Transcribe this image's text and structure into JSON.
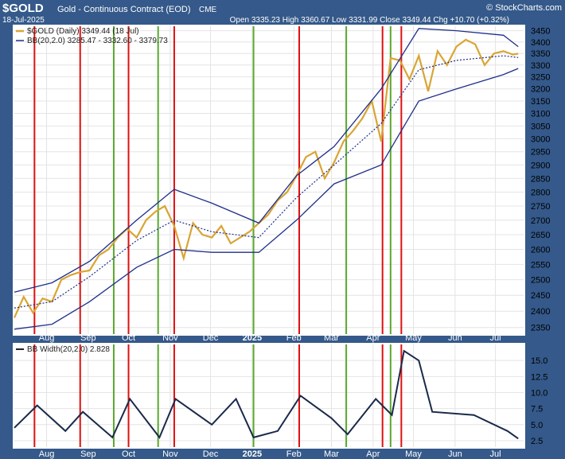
{
  "header": {
    "symbol": "$GOLD",
    "description": "Gold - Continuous Contract (EOD)",
    "exchange": "CME",
    "date": "18-Jul-2025",
    "ohlc_text": "Open 3335.23  High 3360.67  Low 3331.99  Close 3349.44  Chg +10.70 (+0.32%)",
    "watermark": "© StockCharts.com"
  },
  "colors": {
    "frame": "#34598a",
    "panel": "#ffffff",
    "price": "#d9a534",
    "bands": "#1f2f8a",
    "red_line": "#e01010",
    "green_line": "#5aa82e"
  },
  "chart_data": [
    {
      "type": "line",
      "panel": "price",
      "legend": [
        {
          "label": "$GOLD (Daily) 3349.44 (18 Jul)",
          "color": "#d9a534"
        },
        {
          "label": "BB(20,2.0) 3285.47 - 3332.60 - 3379.73",
          "color": "#1f2f8a"
        }
      ],
      "yscale": "log",
      "ylim": [
        2330,
        3470
      ],
      "yticks": [
        2350,
        2400,
        2450,
        2500,
        2550,
        2600,
        2650,
        2700,
        2750,
        2800,
        2850,
        2900,
        2950,
        3000,
        3050,
        3100,
        3150,
        3200,
        3250,
        3300,
        3350,
        3400,
        3450
      ],
      "xlim": [
        "2024-07-08",
        "2025-07-22"
      ],
      "xticks": [
        {
          "date": "2024-08-01",
          "label": "Aug"
        },
        {
          "date": "2024-09-01",
          "label": "Sep"
        },
        {
          "date": "2024-10-01",
          "label": "Oct"
        },
        {
          "date": "2024-11-01",
          "label": "Nov"
        },
        {
          "date": "2024-12-01",
          "label": "Dec"
        },
        {
          "date": "2025-01-01",
          "label": "2025"
        },
        {
          "date": "2025-02-01",
          "label": "Feb"
        },
        {
          "date": "2025-03-01",
          "label": "Mar"
        },
        {
          "date": "2025-04-01",
          "label": "Apr"
        },
        {
          "date": "2025-05-01",
          "label": "May"
        },
        {
          "date": "2025-06-01",
          "label": "Jun"
        },
        {
          "date": "2025-07-01",
          "label": "Jul"
        }
      ],
      "series": [
        {
          "role": "close",
          "x": [
            "2024-07-08",
            "2024-07-15",
            "2024-07-22",
            "2024-07-29",
            "2024-08-05",
            "2024-08-12",
            "2024-08-19",
            "2024-08-26",
            "2024-09-02",
            "2024-09-09",
            "2024-09-16",
            "2024-09-23",
            "2024-09-30",
            "2024-10-07",
            "2024-10-14",
            "2024-10-21",
            "2024-10-28",
            "2024-11-04",
            "2024-11-11",
            "2024-11-18",
            "2024-11-25",
            "2024-12-02",
            "2024-12-09",
            "2024-12-16",
            "2024-12-23",
            "2024-12-30",
            "2025-01-06",
            "2025-01-13",
            "2025-01-20",
            "2025-01-27",
            "2025-02-03",
            "2025-02-10",
            "2025-02-17",
            "2025-02-24",
            "2025-03-03",
            "2025-03-10",
            "2025-03-17",
            "2025-03-24",
            "2025-03-31",
            "2025-04-07",
            "2025-04-14",
            "2025-04-21",
            "2025-04-28",
            "2025-05-05",
            "2025-05-12",
            "2025-05-19",
            "2025-05-26",
            "2025-06-02",
            "2025-06-09",
            "2025-06-16",
            "2025-06-23",
            "2025-06-30",
            "2025-07-07",
            "2025-07-14",
            "2025-07-18"
          ],
          "values": [
            2380,
            2445,
            2395,
            2440,
            2430,
            2500,
            2515,
            2525,
            2530,
            2580,
            2600,
            2640,
            2670,
            2640,
            2700,
            2730,
            2750,
            2680,
            2570,
            2690,
            2650,
            2640,
            2680,
            2620,
            2640,
            2660,
            2690,
            2720,
            2770,
            2800,
            2860,
            2930,
            2950,
            2850,
            2910,
            2990,
            3030,
            3080,
            3150,
            2990,
            3330,
            3320,
            3240,
            3340,
            3190,
            3360,
            3300,
            3380,
            3410,
            3390,
            3300,
            3350,
            3360,
            3345,
            3349.44
          ]
        },
        {
          "role": "bb_upper",
          "x": [
            "2024-07-08",
            "2024-08-05",
            "2024-09-02",
            "2024-10-07",
            "2024-11-04",
            "2024-12-02",
            "2025-01-06",
            "2025-02-03",
            "2025-03-03",
            "2025-04-07",
            "2025-05-05",
            "2025-06-02",
            "2025-07-07",
            "2025-07-18"
          ],
          "values": [
            2460,
            2490,
            2560,
            2700,
            2810,
            2760,
            2690,
            2860,
            2970,
            3200,
            3460,
            3450,
            3430,
            3379.73
          ]
        },
        {
          "role": "bb_middle",
          "x": [
            "2024-07-08",
            "2024-08-05",
            "2024-09-02",
            "2024-10-07",
            "2024-11-04",
            "2024-12-02",
            "2025-01-06",
            "2025-02-03",
            "2025-03-03",
            "2025-04-07",
            "2025-05-05",
            "2025-06-02",
            "2025-07-07",
            "2025-07-18"
          ],
          "values": [
            2410,
            2430,
            2510,
            2630,
            2700,
            2660,
            2640,
            2780,
            2900,
            3060,
            3280,
            3320,
            3340,
            3332.6
          ]
        },
        {
          "role": "bb_lower",
          "x": [
            "2024-07-08",
            "2024-08-05",
            "2024-09-02",
            "2024-10-07",
            "2024-11-04",
            "2024-12-02",
            "2025-01-06",
            "2025-02-03",
            "2025-03-03",
            "2025-04-07",
            "2025-05-05",
            "2025-06-02",
            "2025-07-07",
            "2025-07-18"
          ],
          "values": [
            2345,
            2360,
            2430,
            2540,
            2600,
            2590,
            2590,
            2700,
            2830,
            2900,
            3150,
            3200,
            3260,
            3285.47
          ]
        }
      ],
      "markers": {
        "red": [
          "2024-07-23",
          "2024-08-26",
          "2024-10-01",
          "2024-11-04",
          "2025-02-05",
          "2025-04-08",
          "2025-04-22"
        ],
        "green": [
          "2024-09-20",
          "2024-10-23",
          "2025-01-02",
          "2025-03-12",
          "2025-04-14"
        ]
      }
    },
    {
      "type": "line",
      "panel": "indicator",
      "legend": [
        {
          "label": "BB Width(20,2.0) 2.828",
          "color": "#222"
        }
      ],
      "ylim": [
        1.5,
        17.5
      ],
      "yticks": [
        2.5,
        5.0,
        7.5,
        10.0,
        12.5,
        15.0
      ],
      "ytick_labels": [
        "2.5",
        "5.0",
        "7.5",
        "10.0",
        "12.5",
        "15.0"
      ],
      "series": [
        {
          "role": "bb_width",
          "x": [
            "2024-07-08",
            "2024-07-25",
            "2024-08-15",
            "2024-08-28",
            "2024-09-19",
            "2024-10-02",
            "2024-10-24",
            "2024-11-05",
            "2024-12-02",
            "2024-12-20",
            "2025-01-02",
            "2025-01-20",
            "2025-02-06",
            "2025-03-01",
            "2025-03-13",
            "2025-04-03",
            "2025-04-15",
            "2025-04-24",
            "2025-05-05",
            "2025-05-15",
            "2025-06-15",
            "2025-07-10",
            "2025-07-18"
          ],
          "values": [
            4.5,
            8.0,
            4.0,
            7.0,
            3.0,
            9.0,
            3.0,
            9.0,
            5.0,
            9.0,
            3.0,
            4.0,
            9.5,
            6.0,
            3.5,
            9.0,
            6.5,
            16.5,
            15.0,
            7.0,
            6.5,
            4.0,
            2.828
          ]
        }
      ]
    }
  ]
}
